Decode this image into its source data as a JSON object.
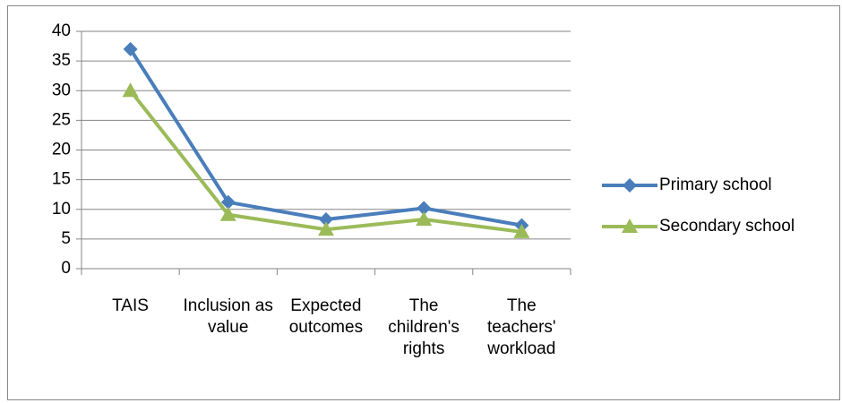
{
  "chart_data": {
    "type": "line",
    "categories": [
      "TAIS",
      "Inclusion as value",
      "Expected outcomes",
      "The children's rights",
      "The teachers' workload"
    ],
    "series": [
      {
        "name": "Primary school",
        "color": "#4a7ebb",
        "marker": "diamond",
        "values": [
          37,
          11.2,
          8.3,
          10.2,
          7.3
        ]
      },
      {
        "name": "Secondary school",
        "color": "#9bbb59",
        "marker": "triangle",
        "values": [
          30,
          9.1,
          6.6,
          8.3,
          6.2
        ]
      }
    ],
    "ylim": [
      0,
      40
    ],
    "yticks": [
      0,
      5,
      10,
      15,
      20,
      25,
      30,
      35,
      40
    ],
    "grid": true,
    "legend": "right"
  }
}
